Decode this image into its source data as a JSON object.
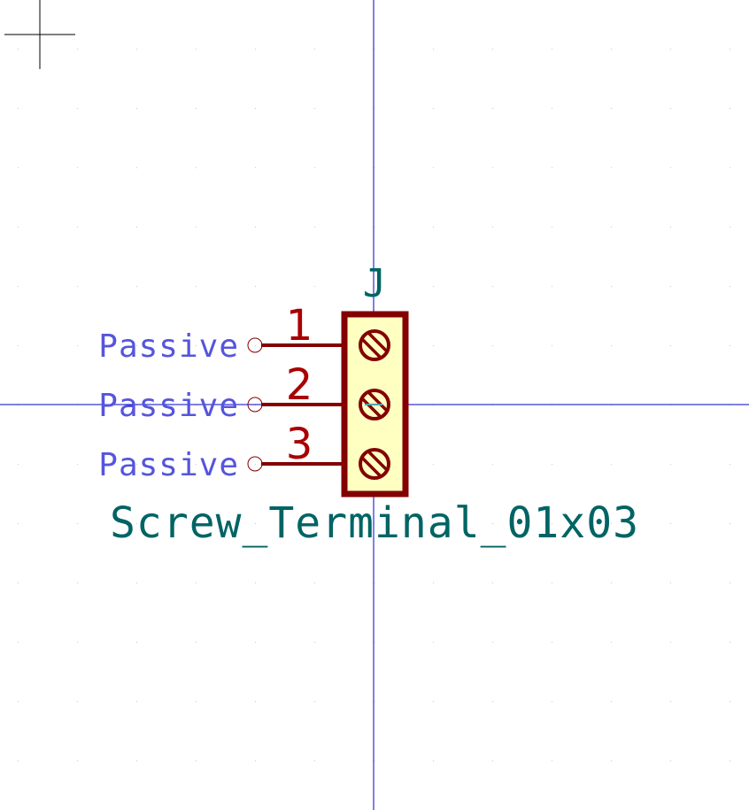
{
  "symbol": {
    "reference": "J",
    "value": "Screw_Terminal_01x03",
    "pins": [
      {
        "number": "1",
        "type": "Passive"
      },
      {
        "number": "2",
        "type": "Passive"
      },
      {
        "number": "3",
        "type": "Passive"
      }
    ]
  },
  "colors": {
    "background": "#ffffff",
    "grid_dot": "#c8c8c8",
    "axis_line": "#0000c8",
    "body_outline": "#840000",
    "body_fill": "#ffffc2",
    "pin_line": "#840000",
    "pin_number": "#a90000",
    "pin_type": "#5555dd",
    "reference": "#006464",
    "value": "#006464",
    "cursor": "#000000"
  },
  "icons": {
    "pin_end": "open-circle-icon",
    "screw": "screw-head-icon",
    "cursor": "crosshair-icon"
  }
}
